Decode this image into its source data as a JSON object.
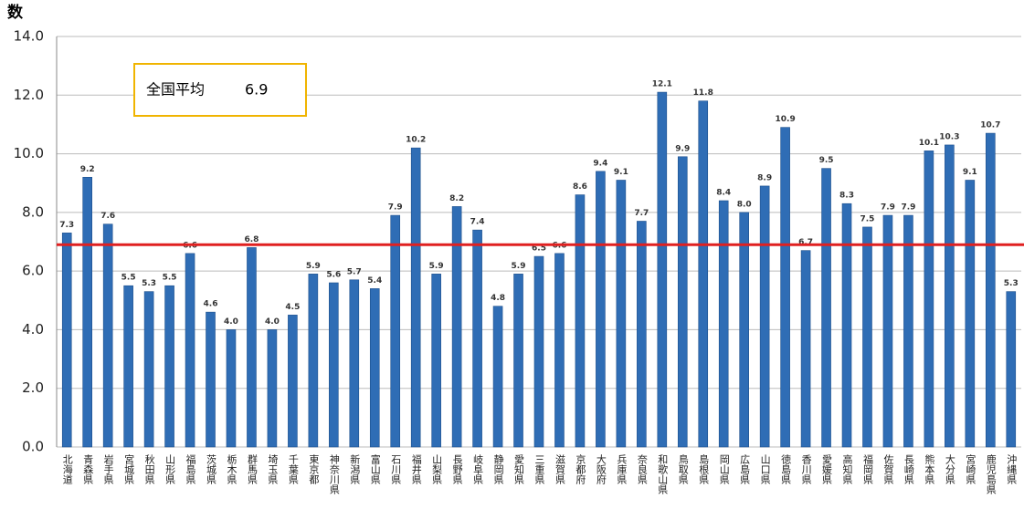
{
  "chart_data": {
    "type": "bar",
    "y_label": "数",
    "categories": [
      "北海道",
      "青森県",
      "岩手県",
      "宮城県",
      "秋田県",
      "山形県",
      "福島県",
      "茨城県",
      "栃木県",
      "群馬県",
      "埼玉県",
      "千葉県",
      "東京都",
      "神奈川県",
      "新潟県",
      "富山県",
      "石川県",
      "福井県",
      "山梨県",
      "長野県",
      "岐阜県",
      "静岡県",
      "愛知県",
      "三重県",
      "滋賀県",
      "京都府",
      "大阪府",
      "兵庫県",
      "奈良県",
      "和歌山県",
      "鳥取県",
      "島根県",
      "岡山県",
      "広島県",
      "山口県",
      "徳島県",
      "香川県",
      "愛媛県",
      "高知県",
      "福岡県",
      "佐賀県",
      "長崎県",
      "熊本県",
      "大分県",
      "宮崎県",
      "鹿児島県",
      "沖縄県"
    ],
    "values": [
      7.3,
      9.2,
      7.6,
      5.5,
      5.3,
      5.5,
      6.6,
      4.6,
      4.0,
      6.8,
      4.0,
      4.5,
      5.9,
      5.6,
      5.7,
      5.4,
      7.9,
      10.2,
      5.9,
      8.2,
      7.4,
      4.8,
      5.9,
      6.5,
      6.6,
      8.6,
      9.4,
      9.1,
      7.7,
      12.1,
      9.9,
      11.8,
      8.4,
      8.0,
      8.9,
      10.9,
      6.7,
      9.5,
      8.3,
      7.5,
      7.9,
      7.9,
      10.1,
      10.3,
      9.1,
      10.7,
      5.3
    ],
    "value_labels": [
      "7.3",
      "9.2",
      "7.6",
      "5.5",
      "5.3",
      "5.5",
      "6.6",
      "4.6",
      "4.0",
      "6.8",
      "4.0",
      "4.5",
      "5.9",
      "5.6",
      "5.7",
      "5.4",
      "7.9",
      "10.2",
      "5.9",
      "8.2",
      "7.4",
      "4.8",
      "5.9",
      "6.5",
      "6.6",
      "8.6",
      "9.4",
      "9.1",
      "7.7",
      "12.1",
      "9.9",
      "11.8",
      "8.4",
      "8.0",
      "8.9",
      "10.9",
      "6.7",
      "9.5",
      "8.3",
      "7.5",
      "7.9",
      "7.9",
      "10.1",
      "10.3",
      "9.1",
      "10.7",
      "5.3"
    ],
    "color": "#2f6db5",
    "ylim": [
      0,
      14
    ],
    "yticks": [
      {
        "value": 0,
        "label": "0.0"
      },
      {
        "value": 2,
        "label": "2.0"
      },
      {
        "value": 4,
        "label": "4.0"
      },
      {
        "value": 6,
        "label": "6.0"
      },
      {
        "value": 8,
        "label": "8.0"
      },
      {
        "value": 10,
        "label": "10.0"
      },
      {
        "value": 12,
        "label": "12.0"
      },
      {
        "value": 14,
        "label": "14.0"
      }
    ],
    "grid": true,
    "average": {
      "label": "全国平均",
      "value": 6.9,
      "color": "#e02020"
    }
  }
}
